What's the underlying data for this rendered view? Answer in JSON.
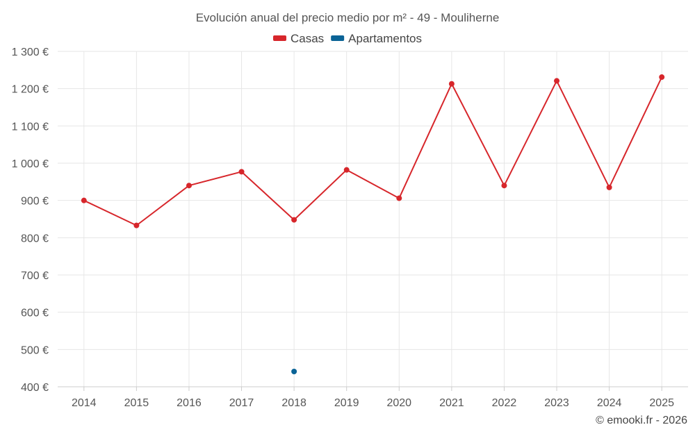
{
  "chart_data": {
    "type": "line",
    "title": "Evolución anual del precio medio por m² - 49 - Mouliherne",
    "categories": [
      "2014",
      "2015",
      "2016",
      "2017",
      "2018",
      "2019",
      "2020",
      "2021",
      "2022",
      "2023",
      "2024",
      "2025"
    ],
    "series": [
      {
        "name": "Casas",
        "color": "#d7262b",
        "values": [
          900,
          833,
          940,
          977,
          848,
          982,
          906,
          1213,
          940,
          1221,
          935,
          1231
        ]
      },
      {
        "name": "Apartamentos",
        "color": "#0a6396",
        "values": [
          null,
          null,
          null,
          null,
          441,
          null,
          null,
          null,
          null,
          null,
          null,
          null
        ]
      }
    ],
    "ylim": [
      400,
      1300
    ],
    "yticks": [
      400,
      500,
      600,
      700,
      800,
      900,
      1000,
      1100,
      1200,
      1300
    ],
    "ytick_labels": [
      "400 €",
      "500 €",
      "600 €",
      "700 €",
      "800 €",
      "900 €",
      "1 000 €",
      "1 100 €",
      "1 200 €",
      "1 300 €"
    ],
    "legend": "top-center",
    "grid": true,
    "xlabel": "",
    "ylabel": ""
  },
  "credit": "© emooki.fr - 2026"
}
